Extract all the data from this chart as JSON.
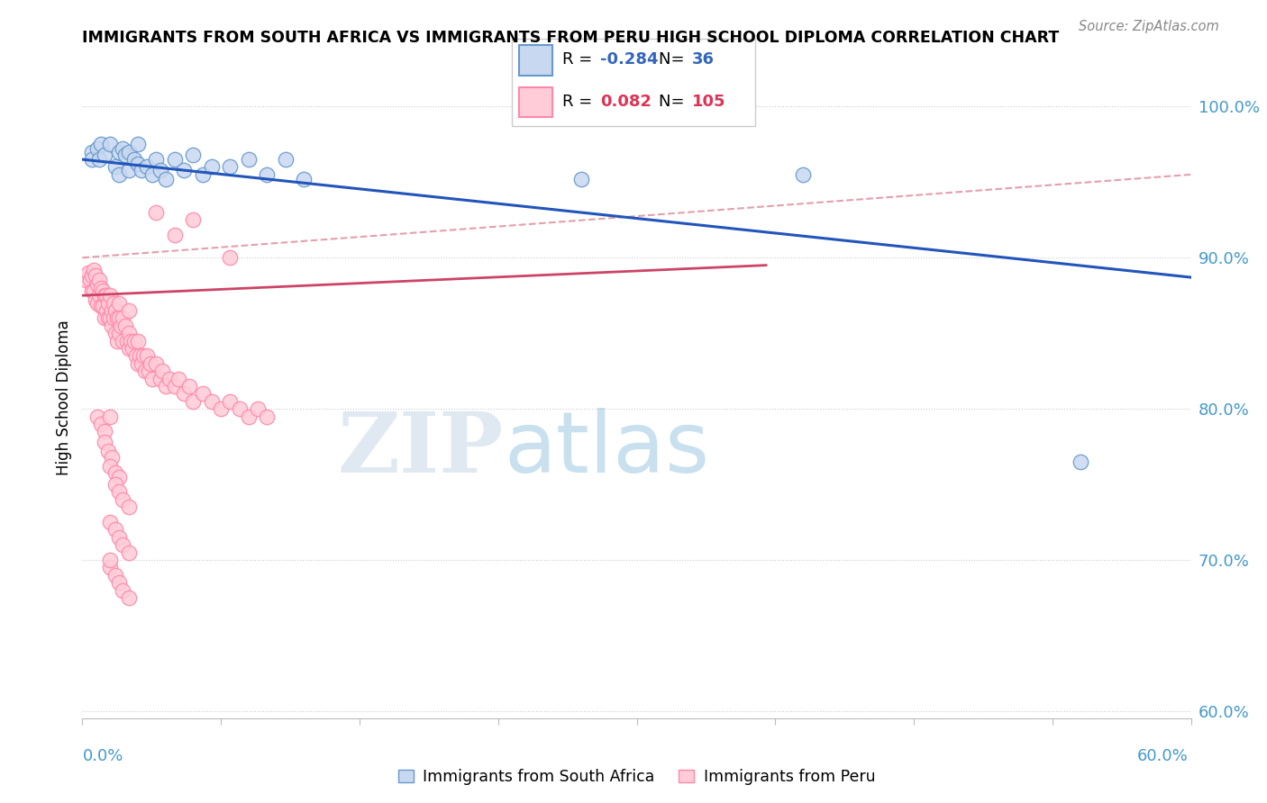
{
  "title": "IMMIGRANTS FROM SOUTH AFRICA VS IMMIGRANTS FROM PERU HIGH SCHOOL DIPLOMA CORRELATION CHART",
  "source": "Source: ZipAtlas.com",
  "ylabel": "High School Diploma",
  "R_blue": -0.284,
  "N_blue": 36,
  "R_pink": 0.082,
  "N_pink": 105,
  "legend_label_blue": "Immigrants from South Africa",
  "legend_label_pink": "Immigrants from Peru",
  "blue_dot_face": "#C8D8F0",
  "blue_dot_edge": "#6699CC",
  "pink_dot_face": "#FFCCD8",
  "pink_dot_edge": "#FF88AA",
  "blue_line_color": "#2255BB",
  "pink_line_color": "#CC4466",
  "dash_line_color": "#DD8899",
  "xlim": [
    0.0,
    0.6
  ],
  "ylim": [
    0.595,
    1.02
  ],
  "yticks": [
    0.6,
    0.7,
    0.8,
    0.9,
    1.0
  ],
  "ytick_labels": [
    "60.0%",
    "70.0%",
    "80.0%",
    "90.0%",
    "100.0%"
  ],
  "blue_line_x0": 0.0,
  "blue_line_y0": 0.965,
  "blue_line_x1": 0.6,
  "blue_line_y1": 0.887,
  "pink_line_x0": 0.0,
  "pink_line_y0": 0.875,
  "pink_line_x1": 0.37,
  "pink_line_y1": 0.895,
  "dash_line_x0": 0.0,
  "dash_line_y0": 0.9,
  "dash_line_x1": 0.6,
  "dash_line_y1": 0.955,
  "south_africa_points": [
    [
      0.5,
      97.0
    ],
    [
      0.5,
      96.5
    ],
    [
      0.8,
      97.2
    ],
    [
      0.9,
      96.5
    ],
    [
      1.0,
      97.5
    ],
    [
      1.2,
      96.8
    ],
    [
      1.5,
      97.5
    ],
    [
      1.8,
      96.0
    ],
    [
      2.0,
      97.0
    ],
    [
      2.0,
      95.5
    ],
    [
      2.2,
      97.2
    ],
    [
      2.3,
      96.8
    ],
    [
      2.5,
      97.0
    ],
    [
      2.5,
      95.8
    ],
    [
      2.8,
      96.5
    ],
    [
      3.0,
      97.5
    ],
    [
      3.0,
      96.2
    ],
    [
      3.2,
      95.8
    ],
    [
      3.5,
      96.0
    ],
    [
      3.8,
      95.5
    ],
    [
      4.0,
      96.5
    ],
    [
      4.2,
      95.8
    ],
    [
      4.5,
      95.2
    ],
    [
      5.0,
      96.5
    ],
    [
      5.5,
      95.8
    ],
    [
      6.0,
      96.8
    ],
    [
      6.5,
      95.5
    ],
    [
      7.0,
      96.0
    ],
    [
      8.0,
      96.0
    ],
    [
      9.0,
      96.5
    ],
    [
      10.0,
      95.5
    ],
    [
      11.0,
      96.5
    ],
    [
      12.0,
      95.2
    ],
    [
      27.0,
      95.2
    ],
    [
      39.0,
      95.5
    ],
    [
      54.0,
      76.5
    ]
  ],
  "peru_points": [
    [
      0.2,
      88.5
    ],
    [
      0.3,
      89.0
    ],
    [
      0.4,
      88.5
    ],
    [
      0.5,
      88.8
    ],
    [
      0.5,
      87.8
    ],
    [
      0.6,
      89.2
    ],
    [
      0.6,
      87.8
    ],
    [
      0.7,
      88.8
    ],
    [
      0.7,
      87.2
    ],
    [
      0.8,
      88.2
    ],
    [
      0.8,
      87.0
    ],
    [
      0.9,
      88.5
    ],
    [
      0.9,
      87.5
    ],
    [
      1.0,
      88.0
    ],
    [
      1.0,
      86.8
    ],
    [
      1.1,
      87.8
    ],
    [
      1.1,
      86.8
    ],
    [
      1.2,
      87.5
    ],
    [
      1.2,
      86.0
    ],
    [
      1.3,
      87.5
    ],
    [
      1.3,
      86.5
    ],
    [
      1.4,
      87.0
    ],
    [
      1.4,
      86.0
    ],
    [
      1.5,
      87.5
    ],
    [
      1.5,
      86.0
    ],
    [
      1.6,
      86.5
    ],
    [
      1.6,
      85.5
    ],
    [
      1.7,
      87.0
    ],
    [
      1.7,
      86.0
    ],
    [
      1.8,
      86.5
    ],
    [
      1.8,
      85.0
    ],
    [
      1.9,
      86.0
    ],
    [
      1.9,
      84.5
    ],
    [
      2.0,
      86.0
    ],
    [
      2.0,
      85.0
    ],
    [
      2.1,
      85.5
    ],
    [
      2.2,
      86.0
    ],
    [
      2.2,
      84.5
    ],
    [
      2.3,
      85.5
    ],
    [
      2.4,
      84.5
    ],
    [
      2.5,
      85.0
    ],
    [
      2.5,
      84.0
    ],
    [
      2.6,
      84.5
    ],
    [
      2.7,
      84.0
    ],
    [
      2.8,
      84.5
    ],
    [
      2.9,
      83.5
    ],
    [
      3.0,
      84.5
    ],
    [
      3.0,
      83.0
    ],
    [
      3.1,
      83.5
    ],
    [
      3.2,
      83.0
    ],
    [
      3.3,
      83.5
    ],
    [
      3.4,
      82.5
    ],
    [
      3.5,
      83.5
    ],
    [
      3.6,
      82.5
    ],
    [
      3.7,
      83.0
    ],
    [
      3.8,
      82.0
    ],
    [
      4.0,
      83.0
    ],
    [
      4.2,
      82.0
    ],
    [
      4.3,
      82.5
    ],
    [
      4.5,
      81.5
    ],
    [
      4.7,
      82.0
    ],
    [
      5.0,
      81.5
    ],
    [
      5.2,
      82.0
    ],
    [
      5.5,
      81.0
    ],
    [
      5.8,
      81.5
    ],
    [
      6.0,
      80.5
    ],
    [
      6.5,
      81.0
    ],
    [
      7.0,
      80.5
    ],
    [
      7.5,
      80.0
    ],
    [
      8.0,
      80.5
    ],
    [
      8.5,
      80.0
    ],
    [
      9.0,
      79.5
    ],
    [
      9.5,
      80.0
    ],
    [
      10.0,
      79.5
    ],
    [
      0.8,
      79.5
    ],
    [
      1.0,
      79.0
    ],
    [
      1.2,
      78.5
    ],
    [
      1.5,
      79.5
    ],
    [
      1.2,
      77.8
    ],
    [
      1.4,
      77.2
    ],
    [
      1.6,
      76.8
    ],
    [
      1.5,
      76.2
    ],
    [
      1.8,
      75.8
    ],
    [
      2.0,
      75.5
    ],
    [
      1.8,
      75.0
    ],
    [
      2.0,
      74.5
    ],
    [
      2.2,
      74.0
    ],
    [
      2.5,
      73.5
    ],
    [
      1.5,
      72.5
    ],
    [
      1.8,
      72.0
    ],
    [
      2.0,
      71.5
    ],
    [
      2.2,
      71.0
    ],
    [
      2.5,
      70.5
    ],
    [
      1.5,
      69.5
    ],
    [
      1.8,
      69.0
    ],
    [
      2.0,
      68.5
    ],
    [
      2.2,
      68.0
    ],
    [
      2.5,
      67.5
    ],
    [
      1.5,
      70.0
    ],
    [
      4.0,
      93.0
    ],
    [
      6.0,
      92.5
    ],
    [
      5.0,
      91.5
    ],
    [
      8.0,
      90.0
    ],
    [
      2.0,
      87.0
    ],
    [
      2.5,
      86.5
    ]
  ]
}
